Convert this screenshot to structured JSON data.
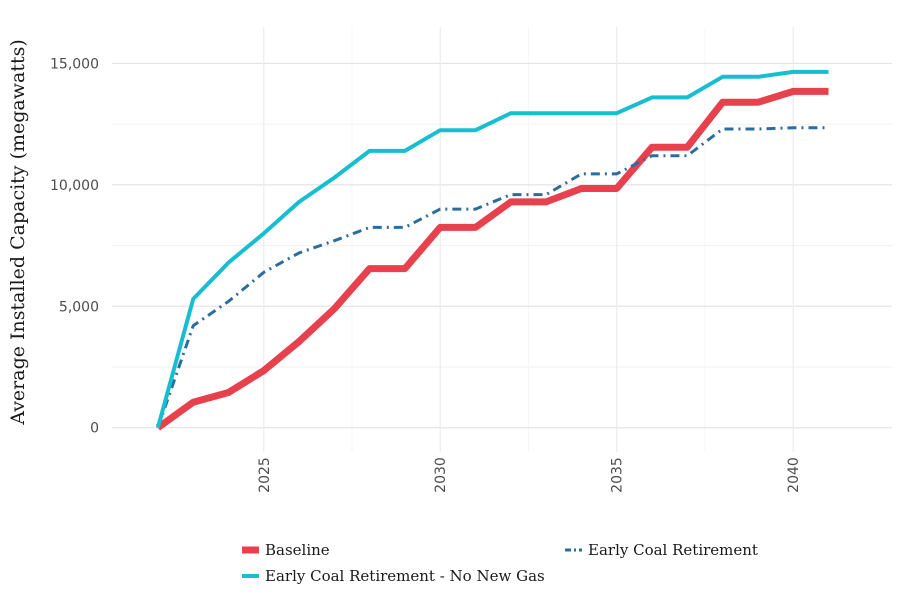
{
  "chart_data": {
    "type": "line",
    "title": "",
    "xlabel": "",
    "ylabel": "Average Installed Capacity (megawatts)",
    "xlim": [
      2020.7,
      2042.8
    ],
    "ylim": [
      -1000,
      16500
    ],
    "x_ticks": [
      2025,
      2030,
      2035,
      2040
    ],
    "y_ticks": [
      0,
      5000,
      10000,
      15000
    ],
    "y_tick_labels": [
      "0",
      "5,000",
      "10,000",
      "15,000"
    ],
    "grid": true,
    "legend_position": "bottom",
    "x": [
      2022,
      2023,
      2024,
      2025,
      2026,
      2027,
      2028,
      2029,
      2030,
      2031,
      2032,
      2033,
      2034,
      2035,
      2036,
      2037,
      2038,
      2039,
      2040,
      2041
    ],
    "series": [
      {
        "name": "Baseline",
        "color": "#e8414e",
        "dash": "solid",
        "values": [
          0,
          1050,
          1450,
          2350,
          3550,
          4900,
          6550,
          6550,
          8250,
          8250,
          9300,
          9300,
          9850,
          9850,
          11550,
          11550,
          13400,
          13400,
          13850,
          13850
        ]
      },
      {
        "name": "Early Coal Retirement",
        "color": "#2b6e9e",
        "dash": "dashdot",
        "values": [
          0,
          4200,
          5200,
          6400,
          7200,
          7700,
          8250,
          8250,
          9000,
          9000,
          9600,
          9600,
          10450,
          10450,
          11200,
          11200,
          12300,
          12300,
          12350,
          12350
        ]
      },
      {
        "name": "Early Coal Retirement - No New Gas",
        "color": "#17becf",
        "dash": "solid",
        "values": [
          0,
          5300,
          6800,
          8000,
          9300,
          10300,
          11400,
          11400,
          12250,
          12250,
          12950,
          12950,
          12950,
          12950,
          13600,
          13600,
          14450,
          14450,
          14650,
          14650
        ]
      }
    ]
  }
}
